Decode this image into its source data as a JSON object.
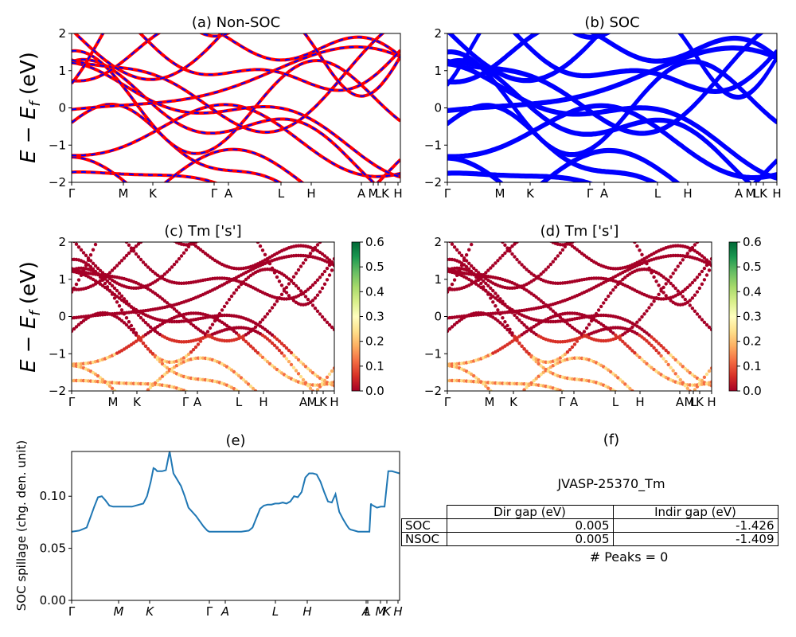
{
  "figure": {
    "ylabel_energy": "E − E",
    "ylabel_energy_sub": "f",
    "ylabel_energy_unit": " (eV)",
    "ylabel_spillage": "SOC spillage (chg. den. unit)"
  },
  "chart_data": [
    {
      "id": "a",
      "type": "line",
      "title": "(a) Non-SOC",
      "kpath": [
        "Γ",
        "M",
        "K",
        "Γ",
        "A",
        "L",
        "H",
        "A",
        "M",
        "L",
        "K",
        "H"
      ],
      "ylim": [
        -2,
        2
      ],
      "yticks": [
        -2,
        -1,
        0,
        1,
        2
      ],
      "series_colors": [
        "#ff0000",
        "#0000ff"
      ],
      "description_style": "red solid with blue dashed overlay",
      "bands": []
    },
    {
      "id": "b",
      "type": "line",
      "title": "(b) SOC",
      "kpath": [
        "Γ",
        "M",
        "K",
        "Γ",
        "A",
        "L",
        "H",
        "A",
        "M",
        "L",
        "K",
        "H"
      ],
      "ylim": [
        -2,
        2
      ],
      "yticks": [
        -2,
        -1,
        0,
        1,
        2
      ],
      "series_colors": [
        "#0000ff"
      ],
      "bands": []
    },
    {
      "id": "c",
      "type": "scatter",
      "title": "(c)  Tm ['s']",
      "kpath": [
        "Γ",
        "M",
        "K",
        "Γ",
        "A",
        "L",
        "H",
        "A",
        "M",
        "L",
        "K",
        "H"
      ],
      "ylim": [
        -2,
        2
      ],
      "yticks": [
        -2,
        -1,
        0,
        1,
        2
      ],
      "colorbar": {
        "min": 0.0,
        "max": 0.6,
        "ticks": [
          "0.0",
          "0.1",
          "0.2",
          "0.3",
          "0.4",
          "0.5",
          "0.6"
        ],
        "colormap": "RdYlGn"
      }
    },
    {
      "id": "d",
      "type": "scatter",
      "title": "(d) Tm ['s']",
      "kpath": [
        "Γ",
        "M",
        "K",
        "Γ",
        "A",
        "L",
        "H",
        "A",
        "M",
        "L",
        "K",
        "H"
      ],
      "ylim": [
        -2,
        2
      ],
      "yticks": [
        -2,
        -1,
        0,
        1,
        2
      ],
      "colorbar": {
        "min": 0.0,
        "max": 0.6,
        "ticks": [
          "0.0",
          "0.1",
          "0.2",
          "0.3",
          "0.4",
          "0.5",
          "0.6"
        ],
        "colormap": "RdYlGn"
      }
    },
    {
      "id": "e",
      "type": "line",
      "title": "(e)",
      "kpath": [
        "Γ",
        "M",
        "K",
        "Γ",
        "A",
        "L",
        "H",
        "A",
        "L",
        "M",
        "K",
        "H"
      ],
      "ylabel": "SOC spillage (chg. den. unit)",
      "ylim": [
        0.0,
        0.143
      ],
      "yticks": [
        "0.00",
        "0.05",
        "0.10"
      ],
      "color": "#1f77b4",
      "x": [
        0,
        2,
        4,
        5,
        6,
        7,
        8,
        9,
        10,
        11,
        13,
        16,
        19,
        20,
        21,
        21.7,
        22.2,
        22.7,
        23.2,
        24,
        25,
        26,
        27,
        28,
        29,
        30,
        31,
        33,
        35,
        36,
        36.5,
        37,
        38,
        39,
        40,
        41,
        43,
        45,
        47,
        48,
        49,
        50,
        51,
        52,
        53,
        54,
        55,
        56,
        57,
        58,
        59,
        60,
        61,
        62,
        63,
        64,
        65,
        66,
        67,
        68,
        69,
        70,
        71,
        72,
        72.5,
        73,
        73.6,
        74,
        75,
        76,
        77,
        78,
        79,
        79.4,
        79.5,
        81,
        82,
        82.5,
        83,
        84,
        85,
        86,
        87
      ],
      "values": [
        0.066,
        0.067,
        0.07,
        0.08,
        0.09,
        0.099,
        0.1,
        0.096,
        0.091,
        0.09,
        0.09,
        0.09,
        0.093,
        0.1,
        0.114,
        0.127,
        0.126,
        0.124,
        0.124,
        0.124,
        0.125,
        0.143,
        0.122,
        0.116,
        0.11,
        0.1,
        0.089,
        0.081,
        0.071,
        0.067,
        0.066,
        0.066,
        0.066,
        0.066,
        0.066,
        0.066,
        0.066,
        0.066,
        0.067,
        0.07,
        0.079,
        0.088,
        0.091,
        0.092,
        0.092,
        0.093,
        0.093,
        0.094,
        0.093,
        0.095,
        0.1,
        0.099,
        0.104,
        0.118,
        0.122,
        0.122,
        0.121,
        0.114,
        0.104,
        0.095,
        0.094,
        0.102,
        0.085,
        0.078,
        0.075,
        0.072,
        0.069,
        0.068,
        0.067,
        0.066,
        0.066,
        0.066,
        0.066,
        0.093,
        0.092,
        0.089,
        0.09,
        0.09,
        0.09,
        0.124,
        0.124,
        0.123,
        0.122
      ]
    }
  ],
  "panel_f": {
    "title": "(f)",
    "jid": "JVASP-25370_Tm",
    "table": {
      "headers": [
        "Dir gap (eV)",
        "Indir gap (eV)"
      ],
      "rows": [
        {
          "label": "SOC",
          "dir": "0.005",
          "indir": "-1.426"
        },
        {
          "label": "NSOC",
          "dir": "0.005",
          "indir": "-1.409"
        }
      ]
    },
    "peaks": "# Peaks = 0"
  }
}
